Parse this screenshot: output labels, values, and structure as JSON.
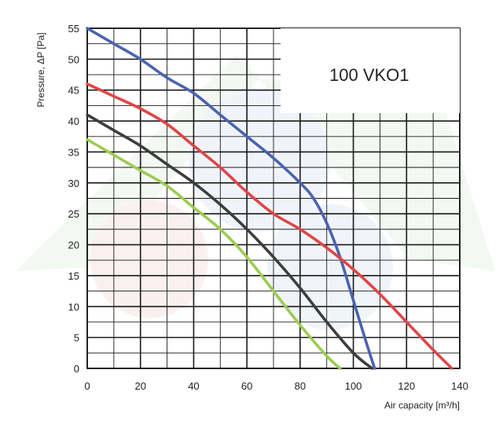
{
  "chart_data": {
    "type": "line",
    "title": "",
    "annotation": "100 VKO1",
    "xlabel": "Air capacity [m³/h]",
    "ylabel": "Pressure, ΔP [Pa]",
    "xlim": [
      0,
      140
    ],
    "ylim": [
      0,
      55
    ],
    "x_ticks": [
      0,
      20,
      40,
      60,
      80,
      100,
      120,
      140
    ],
    "y_ticks": [
      0,
      5,
      10,
      15,
      20,
      25,
      30,
      35,
      40,
      45,
      50,
      55
    ],
    "grid": true,
    "series": [
      {
        "color": "#4a63b0",
        "x": [
          0,
          10,
          20,
          30,
          40,
          50,
          60,
          70,
          80,
          85,
          90,
          95,
          100,
          105,
          108
        ],
        "y": [
          55,
          52.5,
          50,
          47,
          44.5,
          41,
          37.5,
          34,
          30,
          27.5,
          23.5,
          18,
          11,
          4,
          0
        ]
      },
      {
        "color": "#e04545",
        "x": [
          0,
          10,
          20,
          30,
          40,
          50,
          60,
          70,
          80,
          90,
          100,
          110,
          120,
          130,
          137
        ],
        "y": [
          46,
          44,
          42,
          39.5,
          36,
          32.5,
          28.5,
          25,
          22.5,
          19.5,
          16,
          12,
          7.5,
          3,
          0
        ]
      },
      {
        "color": "#3d3d3d",
        "x": [
          0,
          10,
          20,
          30,
          40,
          50,
          60,
          70,
          80,
          90,
          100,
          107
        ],
        "y": [
          41,
          38.5,
          36,
          33,
          30,
          26.5,
          22.5,
          18,
          13,
          7.5,
          2.5,
          0
        ]
      },
      {
        "color": "#9ccc50",
        "x": [
          0,
          10,
          20,
          30,
          40,
          50,
          60,
          70,
          80,
          90,
          95
        ],
        "y": [
          37,
          34.5,
          32,
          29.5,
          26,
          22.5,
          18,
          12.5,
          7,
          2,
          0
        ]
      }
    ]
  }
}
